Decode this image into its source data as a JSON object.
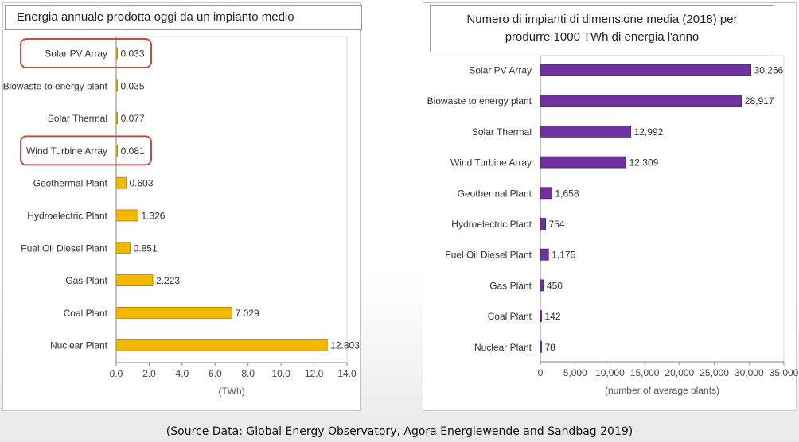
{
  "charts": {
    "left": {
      "title": "Energia annuale prodotta oggi da un impianto medio",
      "type": "bar",
      "categories": [
        "Solar PV Array",
        "Biowaste to energy plant",
        "Solar Thermal",
        "Wind Turbine Array",
        "Geothermal Plant",
        "Hydroelectric Plant",
        "Fuel Oil Diesel Plant",
        "Gas Plant",
        "Coal Plant",
        "Nuclear Plant"
      ],
      "values": [
        0.033,
        0.035,
        0.077,
        0.081,
        0.603,
        1.326,
        0.851,
        2.223,
        7.029,
        12.803
      ],
      "value_labels": [
        "0.033",
        "0.035",
        "0.077",
        "0.081",
        "0.603",
        "1.326",
        "0.851",
        "2.223",
        "7.029",
        "12.803"
      ],
      "xlim": [
        0,
        14
      ],
      "ticks": [
        0,
        2,
        4,
        6,
        8,
        10,
        12,
        14
      ],
      "tick_labels": [
        "0.0",
        "2.0",
        "4.0",
        "6.0",
        "8.0",
        "10.0",
        "12.0",
        "14.0"
      ],
      "xlabel": "(TWh)",
      "highlighted": [
        "Solar PV Array",
        "Wind Turbine Array"
      ],
      "bar_color": "#f5b800",
      "bar_stroke": "#b07d00",
      "highlight_color": "#c0504d"
    },
    "right": {
      "title_line1": "Numero di impianti di dimensione media (2018) per",
      "title_line2": "produrre  1000 TWh di energia l'anno",
      "type": "bar",
      "categories": [
        "Solar PV Array",
        "Biowaste to energy plant",
        "Solar Thermal",
        "Wind Turbine Array",
        "Geothermal Plant",
        "Hydroelectric Plant",
        "Fuel Oil Diesel Plant",
        "Gas Plant",
        "Coal Plant",
        "Nuclear Plant"
      ],
      "values": [
        30266,
        28917,
        12992,
        12309,
        1658,
        754,
        1175,
        450,
        142,
        78
      ],
      "value_labels": [
        "30,266",
        "28,917",
        "12,992",
        "12,309",
        "1,658",
        "754",
        "1,175",
        "450",
        "142",
        "78"
      ],
      "xlim": [
        0,
        35000
      ],
      "ticks": [
        0,
        5000,
        10000,
        15000,
        20000,
        25000,
        30000,
        35000
      ],
      "tick_labels": [
        "0",
        "5,000",
        "10,000",
        "15,000",
        "20,000",
        "25,000",
        "30,000",
        "35,000"
      ],
      "xlabel": "(number of average plants)",
      "bar_color": "#7030a0",
      "bar_stroke": "#4a1f6e"
    }
  },
  "chart_data": [
    {
      "type": "bar",
      "title": "Energia annuale prodotta oggi da un impianto medio",
      "categories": [
        "Solar PV Array",
        "Biowaste to energy plant",
        "Solar Thermal",
        "Wind Turbine Array",
        "Geothermal Plant",
        "Hydroelectric Plant",
        "Fuel Oil Diesel Plant",
        "Gas Plant",
        "Coal Plant",
        "Nuclear Plant"
      ],
      "values": [
        0.033,
        0.035,
        0.077,
        0.081,
        0.603,
        1.326,
        0.851,
        2.223,
        7.029,
        12.803
      ],
      "xlabel": "(TWh)",
      "xlim": [
        0,
        14
      ]
    },
    {
      "type": "bar",
      "title": "Numero di impianti di dimensione media (2018) per produrre 1000 TWh di energia l'anno",
      "categories": [
        "Solar PV Array",
        "Biowaste to energy plant",
        "Solar Thermal",
        "Wind Turbine Array",
        "Geothermal Plant",
        "Hydroelectric Plant",
        "Fuel Oil Diesel Plant",
        "Gas Plant",
        "Coal Plant",
        "Nuclear Plant"
      ],
      "values": [
        30266,
        28917,
        12992,
        12309,
        1658,
        754,
        1175,
        450,
        142,
        78
      ],
      "xlabel": "(number of average plants)",
      "xlim": [
        0,
        35000
      ]
    }
  ],
  "footer": "(Source Data: Global Energy Observatory, Agora Energiewende and Sandbag 2019)"
}
